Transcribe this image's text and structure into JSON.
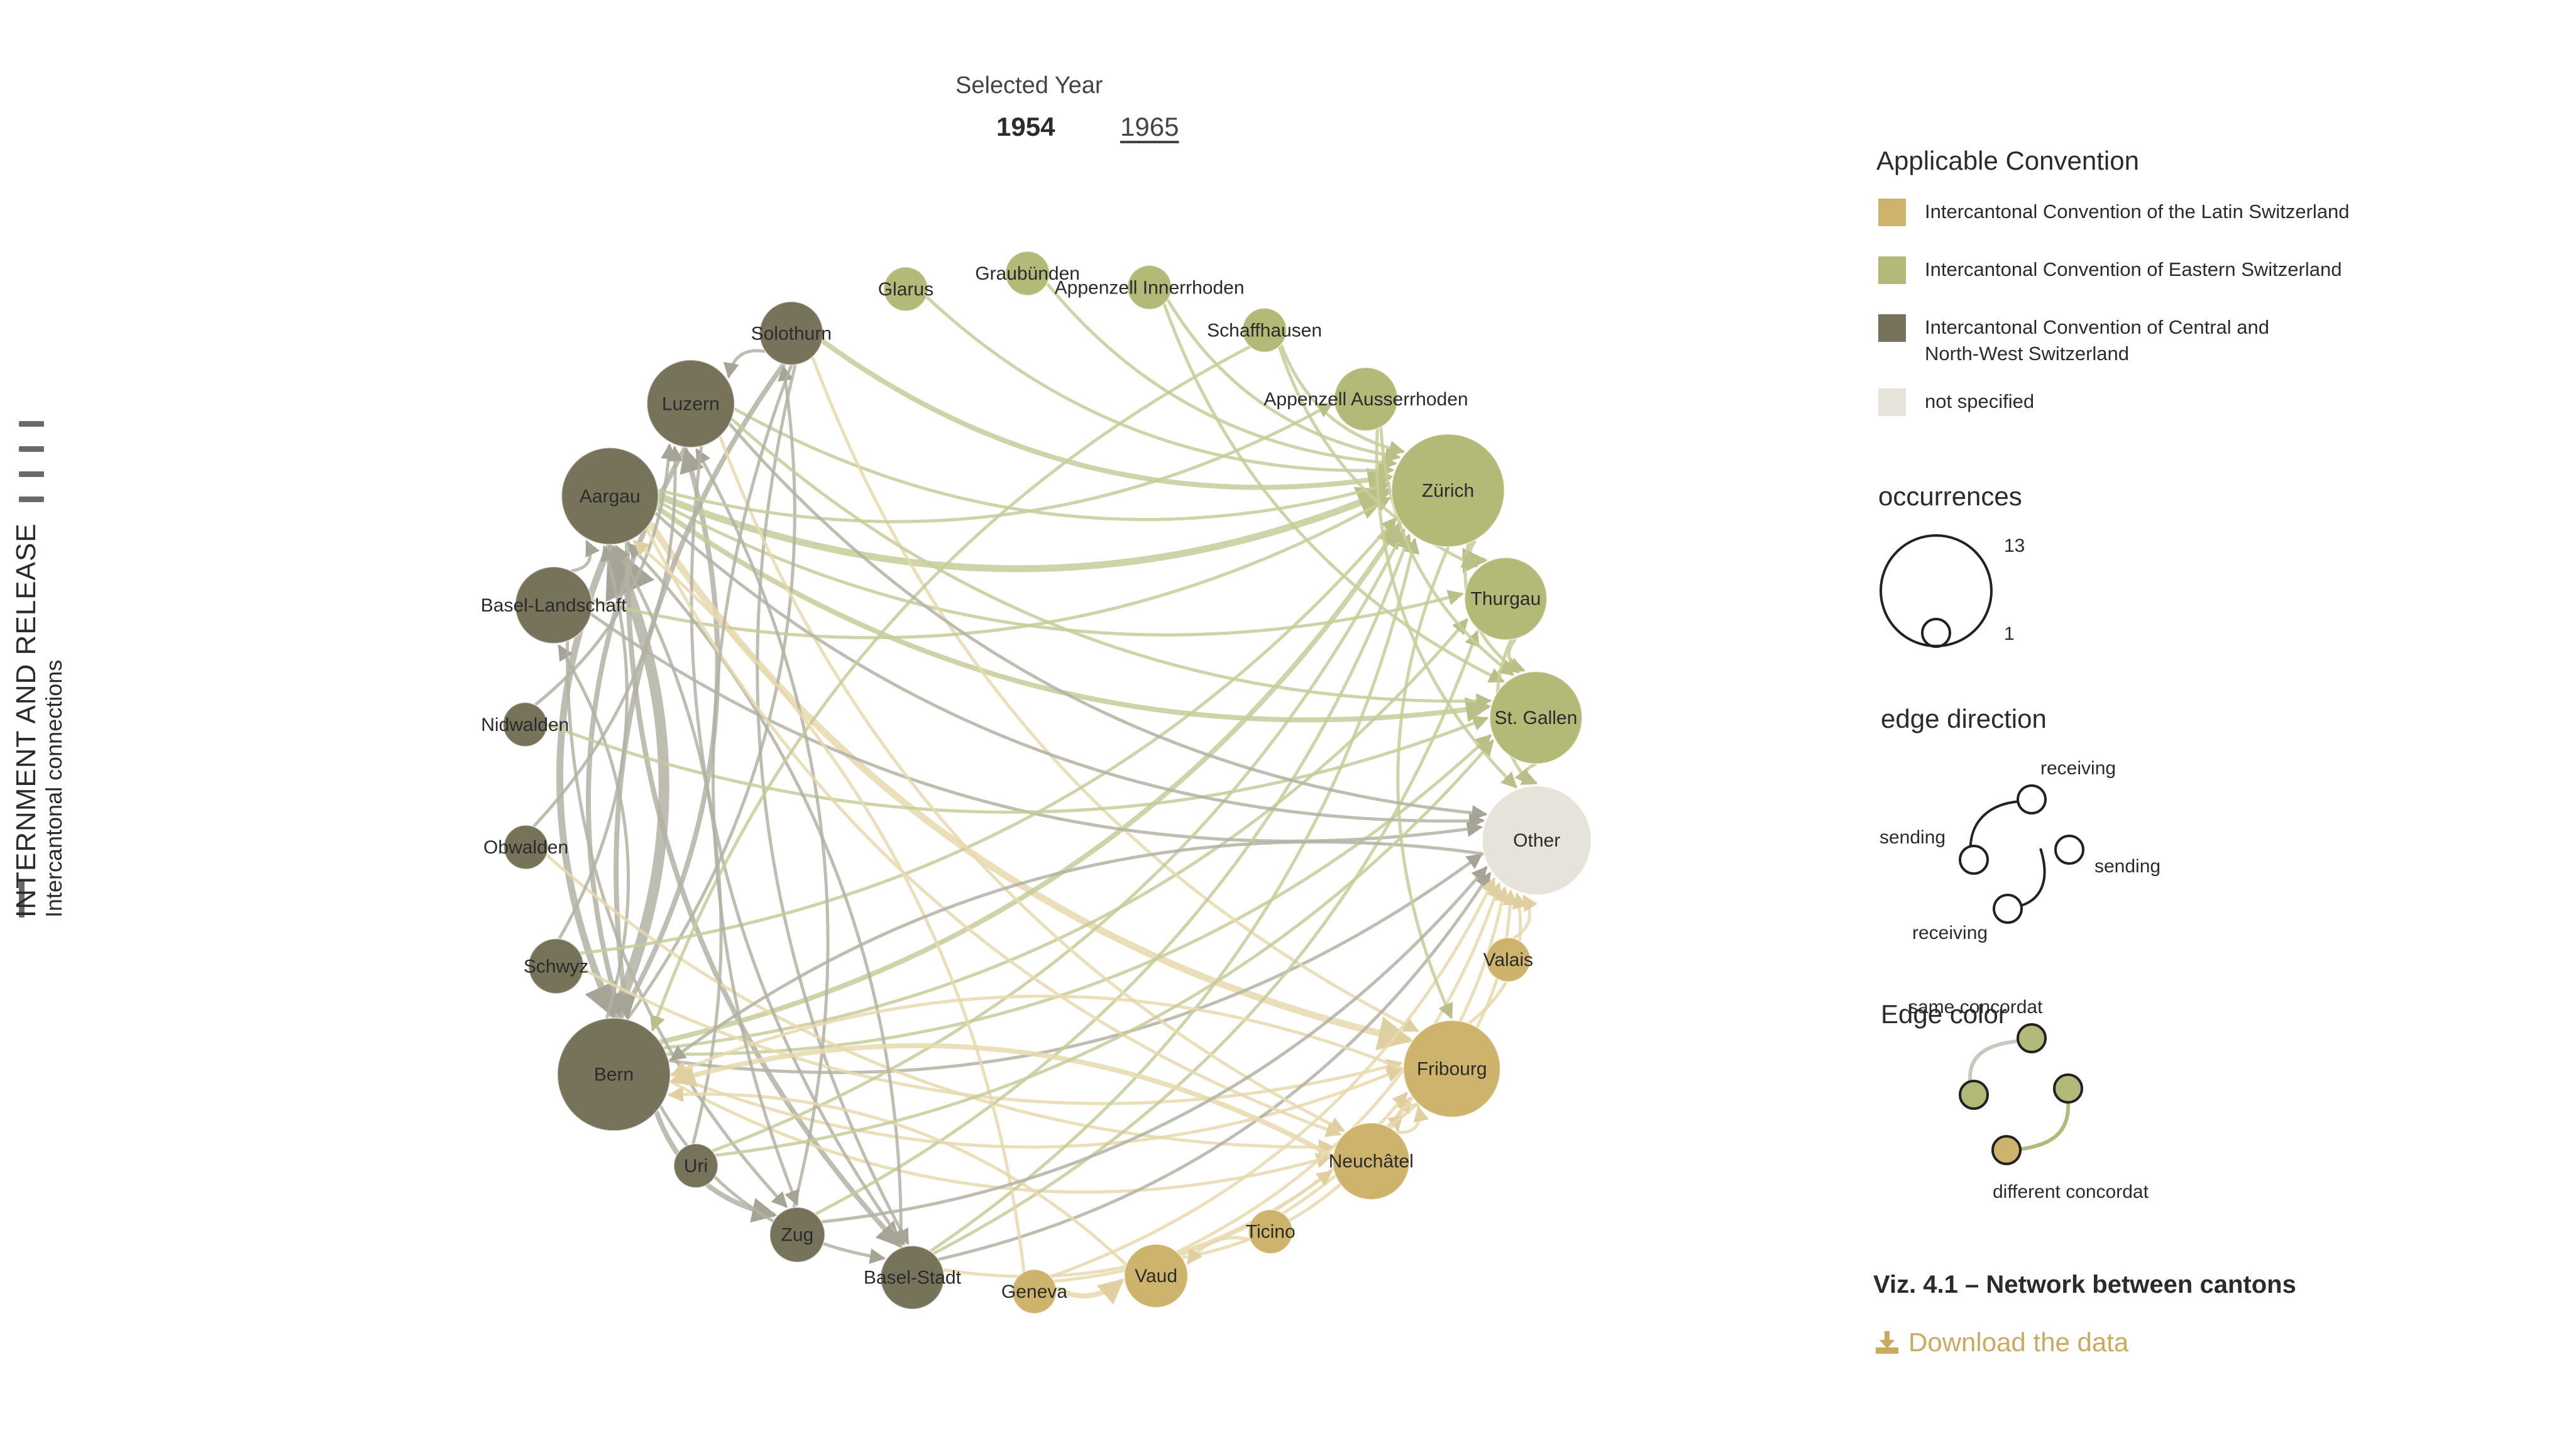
{
  "sidebar": {
    "title": "INTERNMENT AND RELEASE",
    "subtitle": "Intercantonal connections",
    "menu_icon": "hamburger-menu-icon"
  },
  "year_selector": {
    "label": "Selected Year",
    "years": [
      "1954",
      "1965"
    ],
    "active": "1954"
  },
  "colors": {
    "latin": "#cdb36c",
    "eastern": "#b3ba78",
    "central": "#77735b",
    "other": "#e6e4da",
    "edge_same": "#b3b1a4",
    "edge_eastern": "#c6cc98",
    "edge_latin": "#e8d9ae",
    "accent": "#c9aa5f"
  },
  "network": {
    "nodes": [
      {
        "id": "Zürich",
        "group": "eastern",
        "occurrences": 13
      },
      {
        "id": "Thurgau",
        "group": "eastern",
        "occurrences": 6
      },
      {
        "id": "St. Gallen",
        "group": "eastern",
        "occurrences": 8
      },
      {
        "id": "Other",
        "group": "other",
        "occurrences": 12
      },
      {
        "id": "Valais",
        "group": "latin",
        "occurrences": 1
      },
      {
        "id": "Fribourg",
        "group": "latin",
        "occurrences": 9
      },
      {
        "id": "Neuchâtel",
        "group": "latin",
        "occurrences": 5
      },
      {
        "id": "Ticino",
        "group": "latin",
        "occurrences": 1
      },
      {
        "id": "Vaud",
        "group": "latin",
        "occurrences": 3
      },
      {
        "id": "Geneva",
        "group": "latin",
        "occurrences": 1
      },
      {
        "id": "Basel-Stadt",
        "group": "central",
        "occurrences": 3
      },
      {
        "id": "Zug",
        "group": "central",
        "occurrences": 2
      },
      {
        "id": "Uri",
        "group": "central",
        "occurrences": 1
      },
      {
        "id": "Bern",
        "group": "central",
        "occurrences": 13
      },
      {
        "id": "Schwyz",
        "group": "central",
        "occurrences": 2
      },
      {
        "id": "Obwalden",
        "group": "central",
        "occurrences": 1
      },
      {
        "id": "Nidwalden",
        "group": "central",
        "occurrences": 1
      },
      {
        "id": "Basel-Landschaft",
        "group": "central",
        "occurrences": 5
      },
      {
        "id": "Aargau",
        "group": "central",
        "occurrences": 9
      },
      {
        "id": "Luzern",
        "group": "central",
        "occurrences": 7
      },
      {
        "id": "Solothurn",
        "group": "central",
        "occurrences": 3
      },
      {
        "id": "Glarus",
        "group": "eastern",
        "occurrences": 1
      },
      {
        "id": "Graubünden",
        "group": "eastern",
        "occurrences": 1
      },
      {
        "id": "Appenzell Innerrhoden",
        "group": "eastern",
        "occurrences": 1
      },
      {
        "id": "Schaffhausen",
        "group": "eastern",
        "occurrences": 1
      },
      {
        "id": "Appenzell Ausserrhoden",
        "group": "eastern",
        "occurrences": 3
      }
    ],
    "edges": [
      {
        "s": "Bern",
        "t": "Aargau",
        "w": 5
      },
      {
        "s": "Aargau",
        "t": "Bern",
        "w": 3
      },
      {
        "s": "Luzern",
        "t": "Bern",
        "w": 2
      },
      {
        "s": "Bern",
        "t": "Luzern",
        "w": 2
      },
      {
        "s": "Aargau",
        "t": "Zürich",
        "w": 3
      },
      {
        "s": "Solothurn",
        "t": "Zürich",
        "w": 2
      },
      {
        "s": "Luzern",
        "t": "Zürich",
        "w": 1
      },
      {
        "s": "Aargau",
        "t": "St. Gallen",
        "w": 2
      },
      {
        "s": "Aargau",
        "t": "Fribourg",
        "w": 3
      },
      {
        "s": "Aargau",
        "t": "Basel-Stadt",
        "w": 2
      },
      {
        "s": "Aargau",
        "t": "Thurgau",
        "w": 1
      },
      {
        "s": "Bern",
        "t": "Zürich",
        "w": 2
      },
      {
        "s": "Bern",
        "t": "St. Gallen",
        "w": 1
      },
      {
        "s": "Bern",
        "t": "Thurgau",
        "w": 1
      },
      {
        "s": "Bern",
        "t": "Neuchâtel",
        "w": 1
      },
      {
        "s": "Bern",
        "t": "Fribourg",
        "w": 1
      },
      {
        "s": "Bern",
        "t": "Solothurn",
        "w": 1
      },
      {
        "s": "Bern",
        "t": "Zug",
        "w": 2
      },
      {
        "s": "Bern",
        "t": "Basel-Landschaft",
        "w": 1
      },
      {
        "s": "Bern",
        "t": "Other",
        "w": 1
      },
      {
        "s": "Solothurn",
        "t": "Bern",
        "w": 2
      },
      {
        "s": "Solothurn",
        "t": "Basel-Stadt",
        "w": 1
      },
      {
        "s": "Solothurn",
        "t": "Fribourg",
        "w": 1
      },
      {
        "s": "Solothurn",
        "t": "Luzern",
        "w": 1
      },
      {
        "s": "Basel-Landschaft",
        "t": "Zug",
        "w": 1
      },
      {
        "s": "Basel-Landschaft",
        "t": "Zürich",
        "w": 1
      },
      {
        "s": "Basel-Landschaft",
        "t": "Aargau",
        "w": 1
      },
      {
        "s": "Basel-Landschaft",
        "t": "Other",
        "w": 1
      },
      {
        "s": "Nidwalden",
        "t": "Luzern",
        "w": 1
      },
      {
        "s": "Nidwalden",
        "t": "St. Gallen",
        "w": 1
      },
      {
        "s": "Obwalden",
        "t": "Luzern",
        "w": 1
      },
      {
        "s": "Obwalden",
        "t": "Neuchâtel",
        "w": 1
      },
      {
        "s": "Schwyz",
        "t": "Zürich",
        "w": 1
      },
      {
        "s": "Schwyz",
        "t": "Aargau",
        "w": 1
      },
      {
        "s": "Schwyz",
        "t": "Fribourg",
        "w": 1
      },
      {
        "s": "Uri",
        "t": "Aargau",
        "w": 1
      },
      {
        "s": "Uri",
        "t": "Zürich",
        "w": 1
      },
      {
        "s": "Zug",
        "t": "Zürich",
        "w": 1
      },
      {
        "s": "Zug",
        "t": "Luzern",
        "w": 1
      },
      {
        "s": "Basel-Stadt",
        "t": "Zürich",
        "w": 1
      },
      {
        "s": "Basel-Stadt",
        "t": "Thurgau",
        "w": 1
      },
      {
        "s": "Basel-Stadt",
        "t": "Aargau",
        "w": 1
      },
      {
        "s": "Basel-Stadt",
        "t": "Other",
        "w": 1
      },
      {
        "s": "Luzern",
        "t": "Basel-Stadt",
        "w": 1
      },
      {
        "s": "Luzern",
        "t": "Neuchâtel",
        "w": 1
      },
      {
        "s": "Luzern",
        "t": "St. Gallen",
        "w": 1
      },
      {
        "s": "Aargau",
        "t": "Other",
        "w": 1
      },
      {
        "s": "Aargau",
        "t": "Neuchâtel",
        "w": 1
      },
      {
        "s": "Zürich",
        "t": "Thurgau",
        "w": 2
      },
      {
        "s": "Zürich",
        "t": "St. Gallen",
        "w": 1
      },
      {
        "s": "Glarus",
        "t": "Zürich",
        "w": 1
      },
      {
        "s": "Graubünden",
        "t": "Zürich",
        "w": 1
      },
      {
        "s": "Appenzell Innerrhoden",
        "t": "St. Gallen",
        "w": 1
      },
      {
        "s": "Appenzell Innerrhoden",
        "t": "Zürich",
        "w": 1
      },
      {
        "s": "Schaffhausen",
        "t": "Zürich",
        "w": 1
      },
      {
        "s": "Schaffhausen",
        "t": "Thurgau",
        "w": 1
      },
      {
        "s": "Schaffhausen",
        "t": "Bern",
        "w": 1
      },
      {
        "s": "Appenzell Ausserrhoden",
        "t": "St. Gallen",
        "w": 1
      },
      {
        "s": "Appenzell Ausserrhoden",
        "t": "Other",
        "w": 1
      },
      {
        "s": "Thurgau",
        "t": "St. Gallen",
        "w": 1
      },
      {
        "s": "St. Gallen",
        "t": "Other",
        "w": 1
      },
      {
        "s": "Thurgau",
        "t": "Other",
        "w": 1
      },
      {
        "s": "Aargau",
        "t": "Appenzell Ausserrhoden",
        "w": 1
      },
      {
        "s": "Geneva",
        "t": "Vaud",
        "w": 2
      },
      {
        "s": "Geneva",
        "t": "Fribourg",
        "w": 1
      },
      {
        "s": "Geneva",
        "t": "Other",
        "w": 1
      },
      {
        "s": "Vaud",
        "t": "Other",
        "w": 1
      },
      {
        "s": "Vaud",
        "t": "Fribourg",
        "w": 1
      },
      {
        "s": "Ticino",
        "t": "Vaud",
        "w": 1
      },
      {
        "s": "Ticino",
        "t": "Other",
        "w": 1
      },
      {
        "s": "Neuchâtel",
        "t": "Fribourg",
        "w": 1
      },
      {
        "s": "Fribourg",
        "t": "Neuchâtel",
        "w": 1
      },
      {
        "s": "Fribourg",
        "t": "Other",
        "w": 1
      },
      {
        "s": "Neuchâtel",
        "t": "Other",
        "w": 1
      },
      {
        "s": "Valais",
        "t": "Other",
        "w": 1
      },
      {
        "s": "Neuchâtel",
        "t": "Bern",
        "w": 2
      },
      {
        "s": "Fribourg",
        "t": "Bern",
        "w": 1
      },
      {
        "s": "Vaud",
        "t": "Bern",
        "w": 1
      },
      {
        "s": "Geneva",
        "t": "Aargau",
        "w": 1
      },
      {
        "s": "Other",
        "t": "Bern",
        "w": 1
      },
      {
        "s": "Bern",
        "t": "Basel-Stadt",
        "w": 1
      },
      {
        "s": "Zürich",
        "t": "Fribourg",
        "w": 1
      },
      {
        "s": "Basel-Stadt",
        "t": "Neuchâtel",
        "w": 1
      },
      {
        "s": "Uri",
        "t": "St. Gallen",
        "w": 1
      },
      {
        "s": "Zug",
        "t": "Other",
        "w": 1
      },
      {
        "s": "Luzern",
        "t": "Other",
        "w": 1
      },
      {
        "s": "Solothurn",
        "t": "Zug",
        "w": 1
      }
    ]
  },
  "legend": {
    "convention_title": "Applicable Convention",
    "conventions": [
      {
        "key": "latin",
        "label": "Intercantonal Convention of the Latin Switzerland"
      },
      {
        "key": "eastern",
        "label": "Intercantonal Convention of Eastern Switzerland"
      },
      {
        "key": "central",
        "label": "Intercantonal Convention of Central and North-West Switzerland"
      },
      {
        "key": "other",
        "label": "not specified"
      }
    ],
    "occurrences_title": "occurrences",
    "occ_max": "13",
    "occ_min": "1",
    "edge_direction_title": "edge direction",
    "dir_labels": {
      "receiving": "receiving",
      "sending": "sending"
    },
    "edge_color_title": "Edge color",
    "same_label": "same concordat",
    "different_label": "different concordat"
  },
  "caption": "Viz. 4.1 – Network between cantons",
  "download": {
    "label": "Download the data",
    "icon": "download-icon"
  }
}
